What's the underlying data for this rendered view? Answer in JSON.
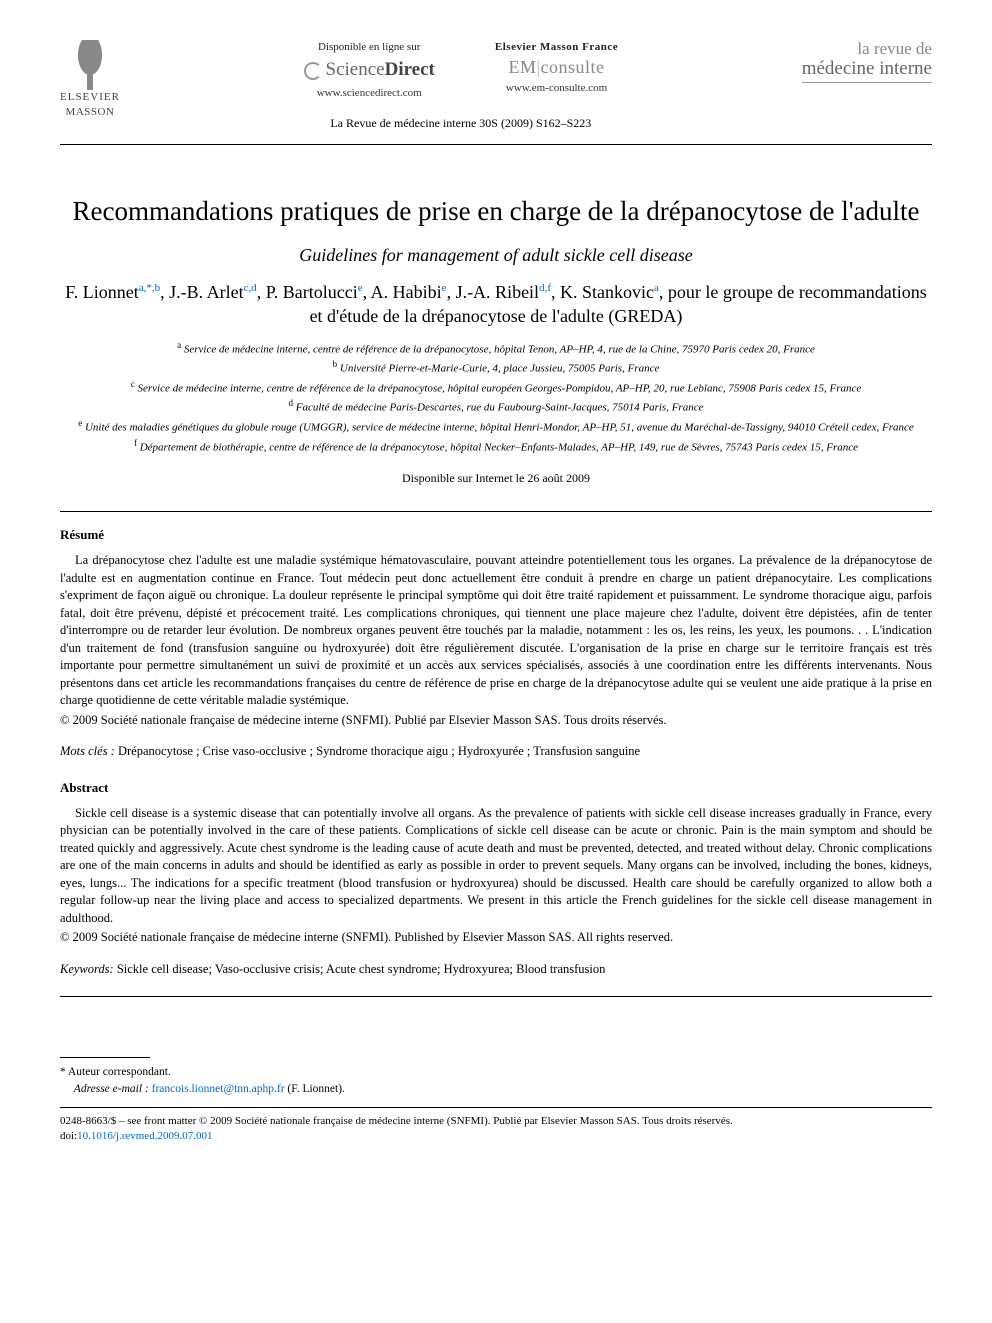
{
  "header": {
    "publisher": {
      "name1": "ELSEVIER",
      "name2": "MASSON"
    },
    "sciencedirect": {
      "available": "Disponible en ligne sur",
      "brand1": "Science",
      "brand2": "Direct",
      "url": "www.sciencedirect.com"
    },
    "emconsulte": {
      "brand_top": "Elsevier Masson France",
      "brand1": "EM",
      "brand2": "consulte",
      "url": "www.em-consulte.com"
    },
    "journal": {
      "line1": "la revue de",
      "line2": "médecine interne"
    },
    "citation": "La Revue de médecine interne 30S (2009) S162–S223"
  },
  "title": "Recommandations pratiques de prise en charge de la drépanocytose de l'adulte",
  "subtitle": "Guidelines for management of adult sickle cell disease",
  "authors_html": "F. Lionnet<sup><a>a</a>,*,<a>b</a></sup>, J.-B. Arlet<sup><a>c</a>,<a>d</a></sup>, P. Bartolucci<sup><a>e</a></sup>, A. Habibi<sup><a>e</a></sup>, J.-A. Ribeil<sup><a>d</a>,<a>f</a></sup>, K. Stankovic<sup><a>a</a></sup>, pour le groupe de recommandations et d'étude de la drépanocytose de l'adulte (GREDA)",
  "affiliations": [
    {
      "key": "a",
      "text": "Service de médecine interne, centre de référence de la drépanocytose, hôpital Tenon, AP–HP, 4, rue de la Chine, 75970 Paris cedex 20, France"
    },
    {
      "key": "b",
      "text": "Université Pierre-et-Marie-Curie, 4, place Jussieu, 75005 Paris, France"
    },
    {
      "key": "c",
      "text": "Service de médecine interne, centre de référence de la drépanocytose, hôpital européen Georges-Pompidou, AP–HP, 20, rue Leblanc, 75908 Paris cedex 15, France"
    },
    {
      "key": "d",
      "text": "Faculté de médecine Paris-Descartes, rue du Faubourg-Saint-Jacques, 75014 Paris, France"
    },
    {
      "key": "e",
      "text": "Unité des maladies génétiques du globule rouge (UMGGR), service de médecine interne, hôpital Henri-Mondor, AP–HP, 51, avenue du Maréchal-de-Tassigny, 94010 Créteil cedex, France"
    },
    {
      "key": "f",
      "text": "Département de biothérapie, centre de référence de la drépanocytose, hôpital Necker–Enfants-Malades, AP–HP, 149, rue de Sèvres, 75743 Paris cedex 15, France"
    }
  ],
  "availability": "Disponible sur Internet le 26 août 2009",
  "resume": {
    "heading": "Résumé",
    "body": "La drépanocytose chez l'adulte est une maladie systémique hématovasculaire, pouvant atteindre potentiellement tous les organes. La prévalence de la drépanocytose de l'adulte est en augmentation continue en France. Tout médecin peut donc actuellement être conduit à prendre en charge un patient drépanocytaire. Les complications s'expriment de façon aiguë ou chronique. La douleur représente le principal symptôme qui doit être traité rapidement et puissamment. Le syndrome thoracique aigu, parfois fatal, doit être prévenu, dépisté et précocement traité. Les complications chroniques, qui tiennent une place majeure chez l'adulte, doivent être dépistées, afin de tenter d'interrompre ou de retarder leur évolution. De nombreux organes peuvent être touchés par la maladie, notamment : les os, les reins, les yeux, les poumons. . . L'indication d'un traitement de fond (transfusion sanguine ou hydroxyurée) doit être régulièrement discutée. L'organisation de la prise en charge sur le territoire français est très importante pour permettre simultanément un suivi de proximité et un accès aux services spécialisés, associés à une coordination entre les différents intervenants. Nous présentons dans cet article les recommandations françaises du centre de référence de prise en charge de la drépanocytose adulte qui se veulent une aide pratique à la prise en charge quotidienne de cette véritable maladie systémique.",
    "copyright": "© 2009 Société nationale française de médecine interne (SNFMI). Publié par Elsevier Masson SAS. Tous droits réservés.",
    "keywords_label": "Mots clés :",
    "keywords": "Drépanocytose ; Crise vaso-occlusive ; Syndrome thoracique aigu ; Hydroxyurée ; Transfusion sanguine"
  },
  "abstract": {
    "heading": "Abstract",
    "body": "Sickle cell disease is a systemic disease that can potentially involve all organs. As the prevalence of patients with sickle cell disease increases gradually in France, every physician can be potentially involved in the care of these patients. Complications of sickle cell disease can be acute or chronic. Pain is the main symptom and should be treated quickly and aggressively. Acute chest syndrome is the leading cause of acute death and must be prevented, detected, and treated without delay. Chronic complications are one of the main concerns in adults and should be identified as early as possible in order to prevent sequels. Many organs can be involved, including the bones, kidneys, eyes, lungs... The indications for a specific treatment (blood transfusion or hydroxyurea) should be discussed. Health care should be carefully organized to allow both a regular follow-up near the living place and access to specialized departments. We present in this article the French guidelines for the sickle cell disease management in adulthood.",
    "copyright": "© 2009 Société nationale française de médecine interne (SNFMI). Published by Elsevier Masson SAS. All rights reserved.",
    "keywords_label": "Keywords:",
    "keywords": "Sickle cell disease; Vaso-occlusive crisis; Acute chest syndrome; Hydroxyurea; Blood transfusion"
  },
  "footnote": {
    "corresponding": "* Auteur correspondant.",
    "email_label": "Adresse e-mail :",
    "email": "francois.lionnet@tnn.aphp.fr",
    "email_suffix": "(F. Lionnet)."
  },
  "footer": {
    "issn": "0248-8663/$ – see front matter © 2009 Société nationale française de médecine interne (SNFMI). Publié par Elsevier Masson SAS. Tous droits réservés.",
    "doi_label": "doi:",
    "doi": "10.1016/j.revmed.2009.07.001"
  }
}
